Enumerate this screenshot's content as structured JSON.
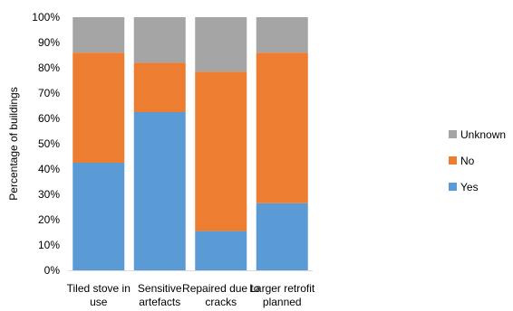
{
  "chart_data": {
    "type": "bar",
    "stacked": true,
    "title": "",
    "xlabel": "",
    "ylabel": "Percentage of buildings",
    "ylim": [
      0,
      100
    ],
    "ytick_step": 10,
    "ytick_suffix": "%",
    "grid": false,
    "legend_position": "right",
    "categories": [
      [
        "Tiled stove in",
        "use"
      ],
      [
        "Sensitive",
        "artefacts"
      ],
      [
        "Repaired due to",
        "cracks"
      ],
      [
        "Larger retrofit",
        "planned"
      ]
    ],
    "series": [
      {
        "name": "Yes",
        "color": "#5B9BD5",
        "values": [
          42.5,
          62.5,
          15.5,
          26.5
        ]
      },
      {
        "name": "No",
        "color": "#ED7D31",
        "values": [
          43.5,
          19.5,
          63.0,
          59.5
        ]
      },
      {
        "name": "Unknown",
        "color": "#A5A5A5",
        "values": [
          14.0,
          18.0,
          21.5,
          14.0
        ]
      }
    ],
    "legend_order": [
      "Unknown",
      "No",
      "Yes"
    ]
  }
}
